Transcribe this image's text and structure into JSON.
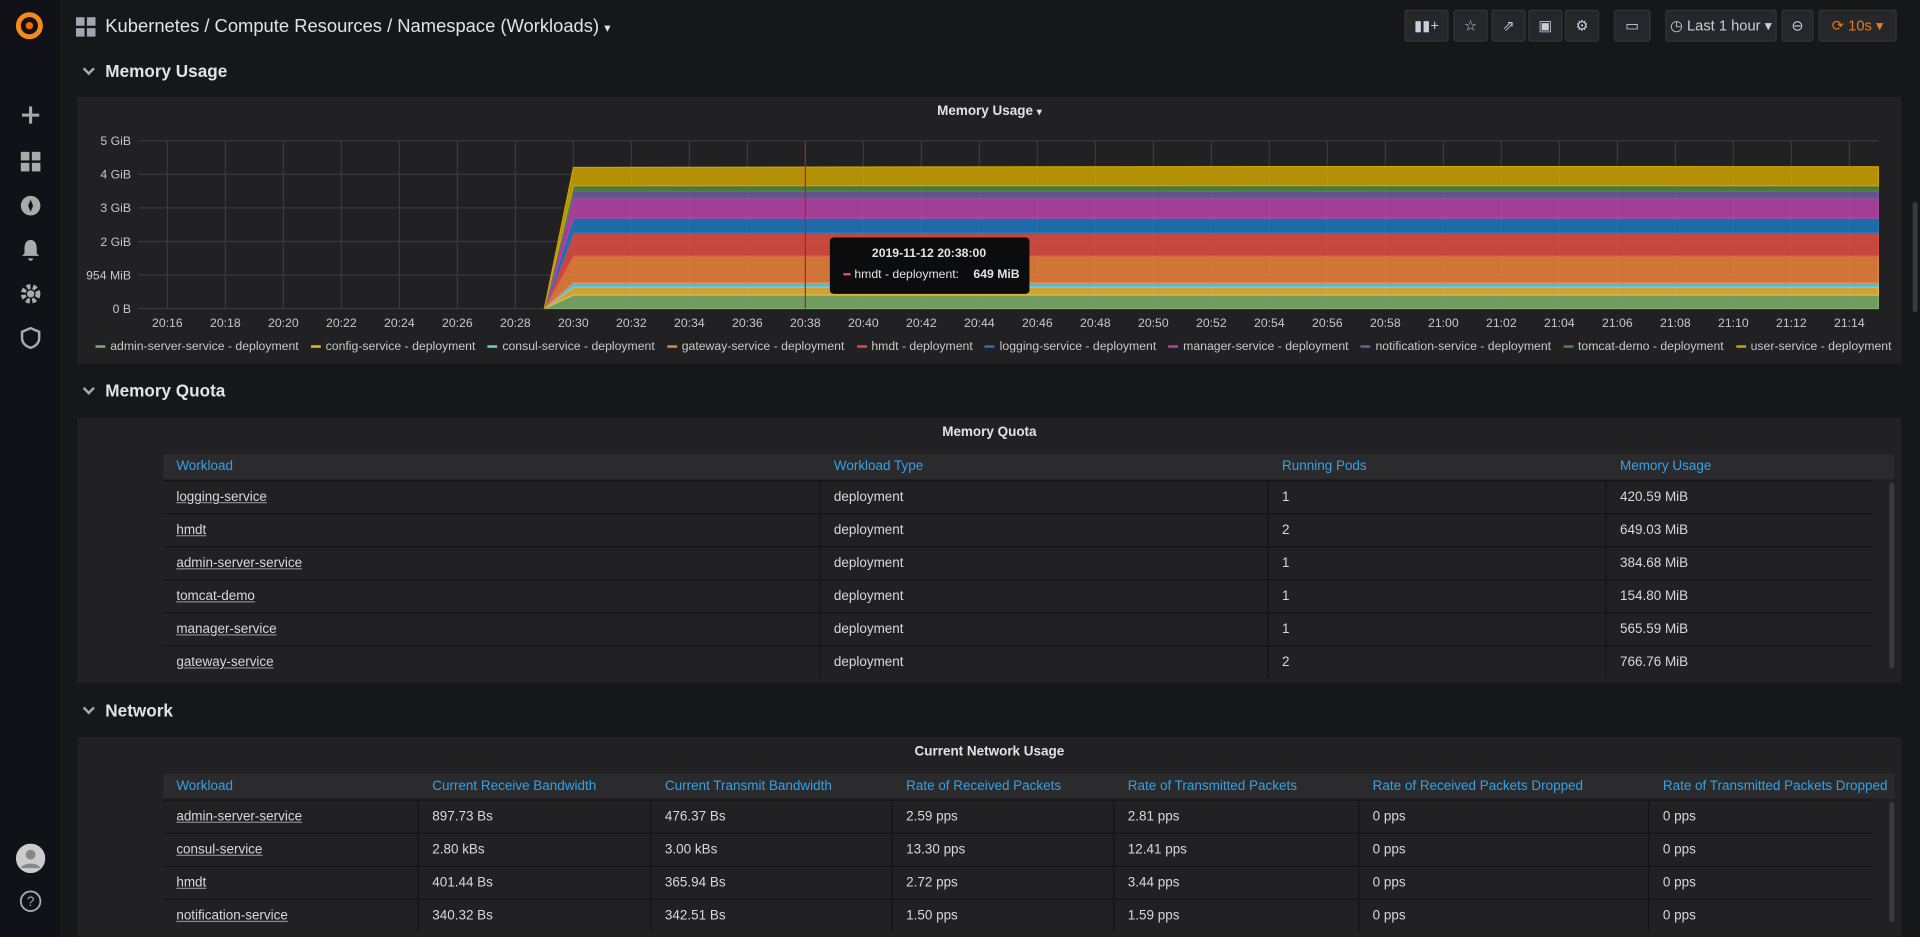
{
  "header": {
    "title": "Kubernetes / Compute Resources / Namespace (Workloads)",
    "time_range": "Last 1 hour",
    "refresh": "10s"
  },
  "sections": [
    "Memory Usage",
    "Memory Quota",
    "Network"
  ],
  "chart_data": {
    "type": "area",
    "stacked": true,
    "title": "Memory Usage",
    "x": [
      "20:29",
      "20:30",
      "20:54",
      "21:15"
    ],
    "xlim": [
      "20:15",
      "21:15"
    ],
    "xticks": [
      "20:16",
      "20:18",
      "20:20",
      "20:22",
      "20:24",
      "20:26",
      "20:28",
      "20:30",
      "20:32",
      "20:34",
      "20:36",
      "20:38",
      "20:40",
      "20:42",
      "20:44",
      "20:46",
      "20:48",
      "20:50",
      "20:52",
      "20:54",
      "20:56",
      "20:58",
      "21:00",
      "21:02",
      "21:04",
      "21:06",
      "21:08",
      "21:10",
      "21:12",
      "21:14"
    ],
    "ylim": [
      0,
      4768.37
    ],
    "yticks": [
      {
        "value": 0,
        "label": "0 B"
      },
      {
        "value": 953.67,
        "label": "954 MiB"
      },
      {
        "value": 1907.35,
        "label": "2 GiB"
      },
      {
        "value": 2861.02,
        "label": "3 GiB"
      },
      {
        "value": 3814.7,
        "label": "4 GiB"
      },
      {
        "value": 4768.37,
        "label": "5 GiB"
      }
    ],
    "grid": true,
    "series": [
      {
        "name": "admin-server-service - deployment",
        "color": "#7eb26d",
        "values": [
          0,
          384.68,
          384.68,
          384.68
        ]
      },
      {
        "name": "config-service - deployment",
        "color": "#eab839",
        "values": [
          0,
          220,
          220,
          220
        ]
      },
      {
        "name": "consul-service - deployment",
        "color": "#6ed0e0",
        "values": [
          0,
          130,
          130,
          130
        ]
      },
      {
        "name": "gateway-service - deployment",
        "color": "#ef843c",
        "values": [
          0,
          766.76,
          766.76,
          766.76
        ]
      },
      {
        "name": "hmdt - deployment",
        "color": "#e24d42",
        "values": [
          0,
          649.03,
          649.03,
          649.03
        ]
      },
      {
        "name": "logging-service - deployment",
        "color": "#1f78c1",
        "values": [
          0,
          420.59,
          420.59,
          420.59
        ]
      },
      {
        "name": "manager-service - deployment",
        "color": "#ba43a9",
        "values": [
          0,
          565.59,
          565.59,
          565.59
        ]
      },
      {
        "name": "notification-service - deployment",
        "color": "#705da0",
        "values": [
          0,
          200,
          200,
          200
        ]
      },
      {
        "name": "tomcat-demo - deployment",
        "color": "#508642",
        "values": [
          0,
          154.8,
          160,
          154.8
        ]
      },
      {
        "name": "user-service - deployment",
        "color": "#cca300",
        "values": [
          0,
          520,
          540,
          540
        ]
      }
    ],
    "tooltip": {
      "time": "2019-11-12 20:38:00",
      "x": "20:38",
      "series": "hmdt - deployment:",
      "value": "649 MiB"
    }
  },
  "memory_quota": {
    "title": "Memory Quota",
    "columns": [
      "Workload",
      "Workload Type",
      "Running Pods",
      "Memory Usage"
    ],
    "rows": [
      [
        "logging-service",
        "deployment",
        "1",
        "420.59 MiB"
      ],
      [
        "hmdt",
        "deployment",
        "2",
        "649.03 MiB"
      ],
      [
        "admin-server-service",
        "deployment",
        "1",
        "384.68 MiB"
      ],
      [
        "tomcat-demo",
        "deployment",
        "1",
        "154.80 MiB"
      ],
      [
        "manager-service",
        "deployment",
        "1",
        "565.59 MiB"
      ],
      [
        "gateway-service",
        "deployment",
        "2",
        "766.76 MiB"
      ]
    ]
  },
  "network": {
    "title": "Current Network Usage",
    "columns": [
      "Workload",
      "Current Receive Bandwidth",
      "Current Transmit Bandwidth",
      "Rate of Received Packets",
      "Rate of Transmitted Packets",
      "Rate of Received Packets Dropped",
      "Rate of Transmitted Packets Dropped"
    ],
    "rows": [
      [
        "admin-server-service",
        "897.73 Bs",
        "476.37 Bs",
        "2.59 pps",
        "2.81 pps",
        "0 pps",
        "0 pps"
      ],
      [
        "consul-service",
        "2.80 kBs",
        "3.00 kBs",
        "13.30 pps",
        "12.41 pps",
        "0 pps",
        "0 pps"
      ],
      [
        "hmdt",
        "401.44 Bs",
        "365.94 Bs",
        "2.72 pps",
        "3.44 pps",
        "0 pps",
        "0 pps"
      ],
      [
        "notification-service",
        "340.32 Bs",
        "342.51 Bs",
        "1.50 pps",
        "1.59 pps",
        "0 pps",
        "0 pps"
      ]
    ]
  }
}
